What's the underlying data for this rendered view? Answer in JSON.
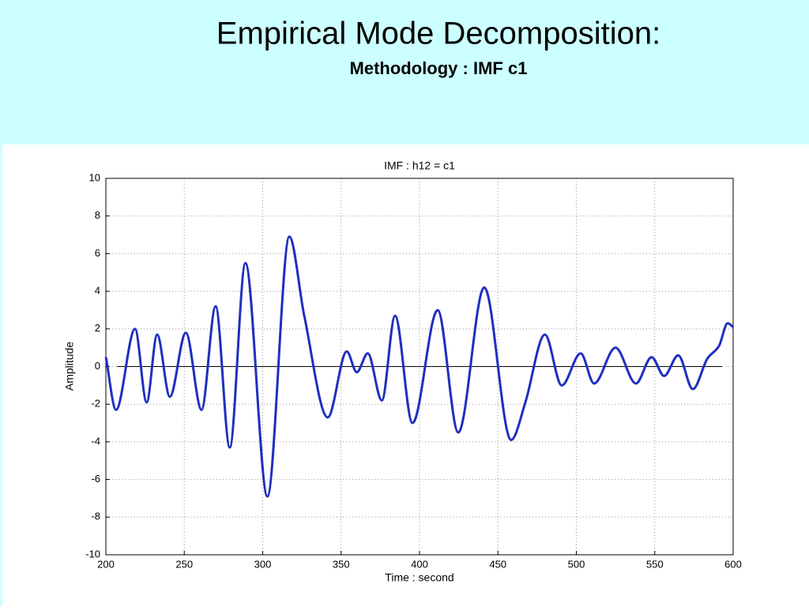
{
  "header": {
    "title": "Empirical Mode Decomposition:",
    "subtitle": "Methodology : IMF c1"
  },
  "chart_data": {
    "type": "line",
    "title": "IMF : h12 = c1",
    "x_label": "Time : second",
    "y_label": "Amplitude",
    "x": [
      200,
      206.5,
      218.6,
      226,
      232.7,
      240.8,
      251,
      261,
      270,
      279,
      289,
      303,
      317,
      326.5,
      341.5,
      353.6,
      360,
      367,
      376,
      384.4,
      395.5,
      411.6,
      424.7,
      441.3,
      458.4,
      467.5,
      480,
      490.7,
      502.8,
      511.3,
      525,
      538,
      548,
      556,
      565,
      574.3,
      583.4,
      591,
      596.5,
      600
    ],
    "series": [
      {
        "color": "#1f2fbf",
        "values": [
          0.5,
          -2.3,
          2.0,
          -1.9,
          1.7,
          -1.6,
          1.8,
          -2.3,
          3.2,
          -4.3,
          5.5,
          -6.9,
          6.9,
          2.7,
          -2.7,
          0.8,
          -0.3,
          0.7,
          -1.8,
          2.7,
          -3.0,
          3.0,
          -3.5,
          4.2,
          -3.9,
          -1.9,
          1.7,
          -1.0,
          0.7,
          -0.9,
          1.0,
          -0.9,
          0.5,
          -0.5,
          0.6,
          -1.2,
          0.4,
          1.1,
          2.3,
          2.1
        ]
      }
    ],
    "xlim": [
      200,
      600
    ],
    "ylim": [
      -10,
      10
    ],
    "xticks": [
      200,
      250,
      300,
      350,
      400,
      450,
      500,
      550,
      600
    ],
    "yticks": [
      -10,
      -8,
      -6,
      -4,
      -2,
      0,
      2,
      4,
      6,
      8,
      10
    ],
    "grid": true
  }
}
